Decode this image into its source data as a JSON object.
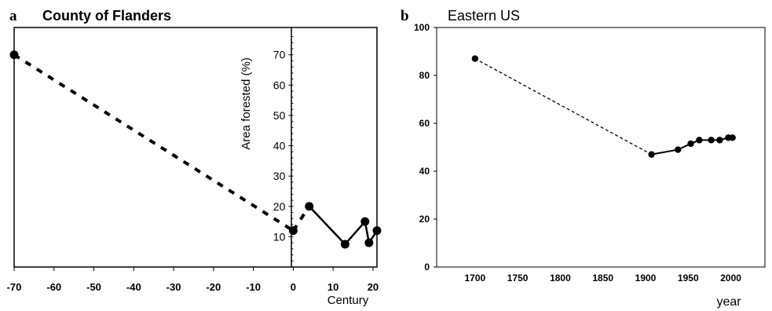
{
  "chart_data": [
    {
      "panel": "a",
      "type": "line",
      "title": "County of Flanders",
      "xlabel": "Century",
      "ylabel": "Area forested (%)",
      "xlim": [
        -70,
        21
      ],
      "ylim": [
        0,
        79
      ],
      "xticks": [
        -70,
        -60,
        -50,
        -40,
        -30,
        -20,
        -10,
        0,
        10,
        20
      ],
      "xtick_labels": [
        "-70",
        "-60",
        "-50",
        "-40",
        "-30",
        "-20",
        "-10",
        "0",
        "10",
        "20"
      ],
      "yticks": [
        10,
        20,
        30,
        40,
        50,
        60,
        70
      ],
      "ytick_labels": [
        "10",
        "20",
        "30",
        "40",
        "50",
        "60",
        "70"
      ],
      "y_axis_position": "x = 0",
      "grid": false,
      "series": [
        {
          "style": "dashed",
          "x": [
            -70,
            0
          ],
          "y": [
            70,
            12
          ]
        },
        {
          "style": "dashed",
          "x": [
            0,
            4
          ],
          "y": [
            12,
            20
          ]
        },
        {
          "style": "solid",
          "x": [
            4,
            13,
            18,
            19,
            21
          ],
          "y": [
            20,
            7.5,
            15,
            8,
            12
          ]
        }
      ],
      "points": [
        {
          "x": -70,
          "y": 70
        },
        {
          "x": 0,
          "y": 12
        },
        {
          "x": 4,
          "y": 20
        },
        {
          "x": 13,
          "y": 7.5
        },
        {
          "x": 18,
          "y": 15
        },
        {
          "x": 19,
          "y": 8
        },
        {
          "x": 21,
          "y": 12
        }
      ]
    },
    {
      "panel": "b",
      "type": "line",
      "title": "Eastern US",
      "xlabel": "year",
      "ylabel": "",
      "xlim": [
        1655,
        2040
      ],
      "ylim": [
        0,
        100
      ],
      "xticks": [
        1700,
        1750,
        1800,
        1850,
        1900,
        1950,
        2000
      ],
      "xtick_labels": [
        "1700",
        "1750",
        "1800",
        "1850",
        "1900",
        "1950",
        "2000"
      ],
      "yticks": [
        0,
        20,
        40,
        60,
        80,
        100
      ],
      "ytick_labels": [
        "0",
        "20",
        "40",
        "60",
        "80",
        "100"
      ],
      "grid": false,
      "series": [
        {
          "style": "dashed",
          "x": [
            1700,
            1907
          ],
          "y": [
            87,
            47
          ]
        },
        {
          "style": "solid",
          "x": [
            1907,
            1938,
            1953,
            1963,
            1977,
            1987,
            1997,
            2002
          ],
          "y": [
            47,
            49,
            51.5,
            53,
            53,
            53,
            54,
            54
          ]
        }
      ],
      "points": [
        {
          "x": 1700,
          "y": 87
        },
        {
          "x": 1907,
          "y": 47
        },
        {
          "x": 1938,
          "y": 49
        },
        {
          "x": 1953,
          "y": 51.5
        },
        {
          "x": 1963,
          "y": 53
        },
        {
          "x": 1977,
          "y": 53
        },
        {
          "x": 1987,
          "y": 53
        },
        {
          "x": 1997,
          "y": 54
        },
        {
          "x": 2002,
          "y": 54
        }
      ]
    }
  ]
}
